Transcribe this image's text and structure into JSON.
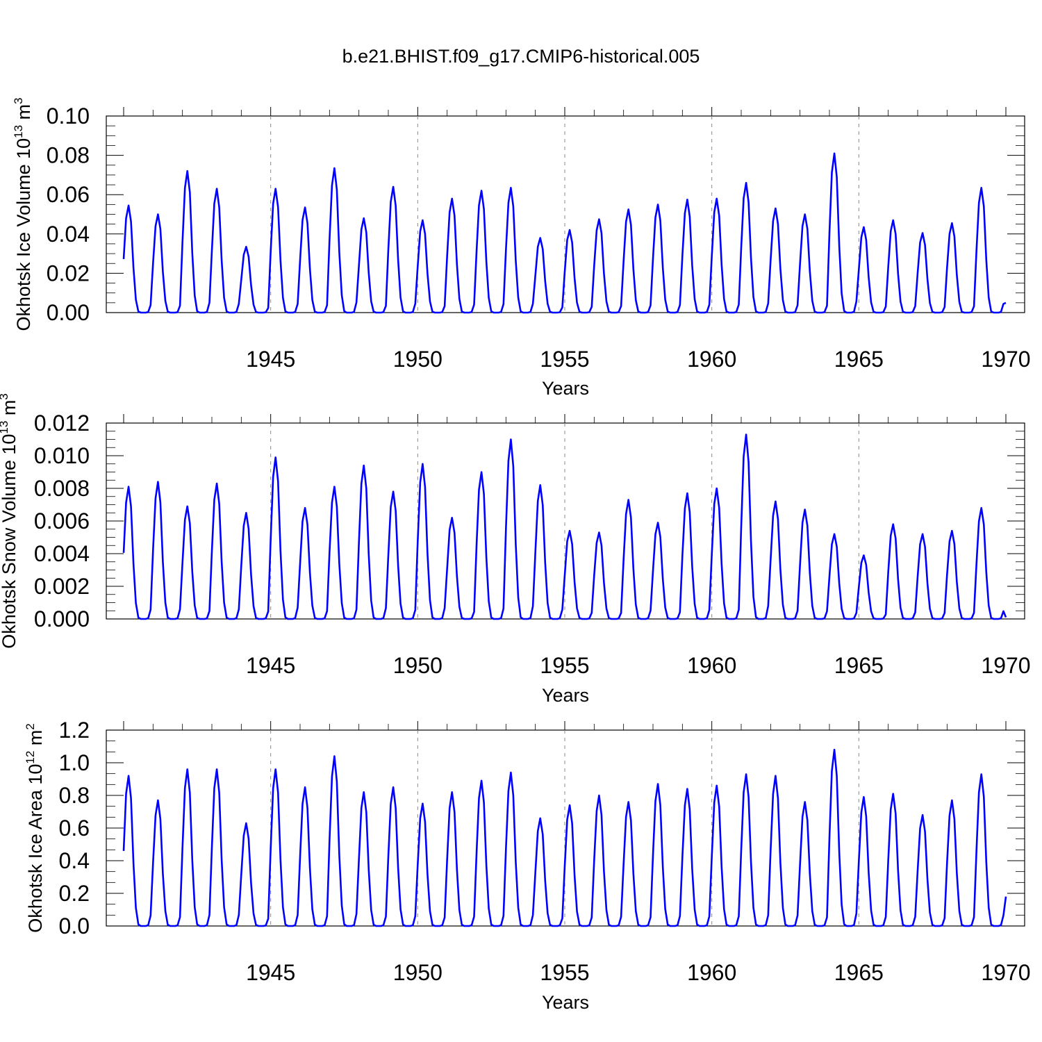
{
  "title": "b.e21.BHIST.f09_g17.CMIP6-historical.005",
  "series_color": "#0000ff",
  "chart_data": [
    {
      "type": "line",
      "title": "b.e21.BHIST.f09_g17.CMIP6-historical.005",
      "xlabel": "Years",
      "ylabel": "Okhotsk Ice Volume 10¹³ m³",
      "ylabel_parts": {
        "text": "Okhotsk Ice Volume 10",
        "sup1": "13",
        "mid": " m",
        "sup2": "3"
      },
      "xlim": [
        1940,
        1970
      ],
      "ylim": [
        0,
        0.1
      ],
      "x_ticks": [
        "1945",
        "1950",
        "1955",
        "1960",
        "1965",
        "1970"
      ],
      "y_ticks": [
        "0.00",
        "0.02",
        "0.04",
        "0.06",
        "0.08",
        "0.10"
      ],
      "vertical_grid": "dashed at 1945, 1950, 1955, 1960, 1965",
      "series": [
        {
          "start_year": 1940,
          "peaks": [
            0.0545,
            0.05,
            0.072,
            0.063,
            0.0335,
            0.063,
            0.0535,
            0.0735,
            0.048,
            0.064,
            0.047,
            0.058,
            0.062,
            0.0635,
            0.038,
            0.042,
            0.0475,
            0.0525,
            0.055,
            0.0575,
            0.058,
            0.066,
            0.053,
            0.05,
            0.081,
            0.0435,
            0.047,
            0.0405,
            0.0455,
            0.0635
          ],
          "end_value": 0.005
        }
      ]
    },
    {
      "type": "line",
      "xlabel": "Years",
      "ylabel": "Okhotsk Snow Volume 10¹³ m³",
      "ylabel_parts": {
        "text": "Okhotsk Snow Volume 10",
        "sup1": "13",
        "mid": " m",
        "sup2": "3"
      },
      "xlim": [
        1940,
        1970
      ],
      "ylim": [
        0,
        0.012
      ],
      "x_ticks": [
        "1945",
        "1950",
        "1955",
        "1960",
        "1965",
        "1970"
      ],
      "y_ticks": [
        "0.000",
        "0.002",
        "0.004",
        "0.006",
        "0.008",
        "0.010",
        "0.012"
      ],
      "vertical_grid": "dashed at 1945, 1950, 1955, 1960, 1965",
      "series": [
        {
          "start_year": 1940,
          "peaks": [
            0.0081,
            0.0084,
            0.0069,
            0.0083,
            0.0065,
            0.0099,
            0.0068,
            0.0081,
            0.0094,
            0.0078,
            0.0095,
            0.0062,
            0.009,
            0.011,
            0.0082,
            0.0054,
            0.0053,
            0.0073,
            0.0059,
            0.0077,
            0.008,
            0.0113,
            0.0072,
            0.0067,
            0.0052,
            0.0039,
            0.0058,
            0.0052,
            0.0054,
            0.0068
          ],
          "end_value": 0.0001
        }
      ]
    },
    {
      "type": "line",
      "xlabel": "Years",
      "ylabel": "Okhotsk Ice Area 10¹² m²",
      "ylabel_parts": {
        "text": "Okhotsk Ice Area 10",
        "sup1": "12",
        "mid": " m",
        "sup2": "2"
      },
      "xlim": [
        1940,
        1970
      ],
      "ylim": [
        0,
        1.2
      ],
      "x_ticks": [
        "1945",
        "1950",
        "1955",
        "1960",
        "1965",
        "1970"
      ],
      "y_ticks": [
        "0.0",
        "0.2",
        "0.4",
        "0.6",
        "0.8",
        "1.0",
        "1.2"
      ],
      "vertical_grid": "dashed at 1945, 1950, 1955, 1960, 1965",
      "series": [
        {
          "start_year": 1940,
          "peaks": [
            0.92,
            0.77,
            0.96,
            0.96,
            0.63,
            0.96,
            0.85,
            1.04,
            0.82,
            0.85,
            0.75,
            0.82,
            0.89,
            0.94,
            0.66,
            0.74,
            0.8,
            0.76,
            0.87,
            0.84,
            0.86,
            0.93,
            0.92,
            0.76,
            1.08,
            0.79,
            0.81,
            0.68,
            0.77,
            0.93
          ],
          "end_value": 0.18
        }
      ]
    }
  ]
}
